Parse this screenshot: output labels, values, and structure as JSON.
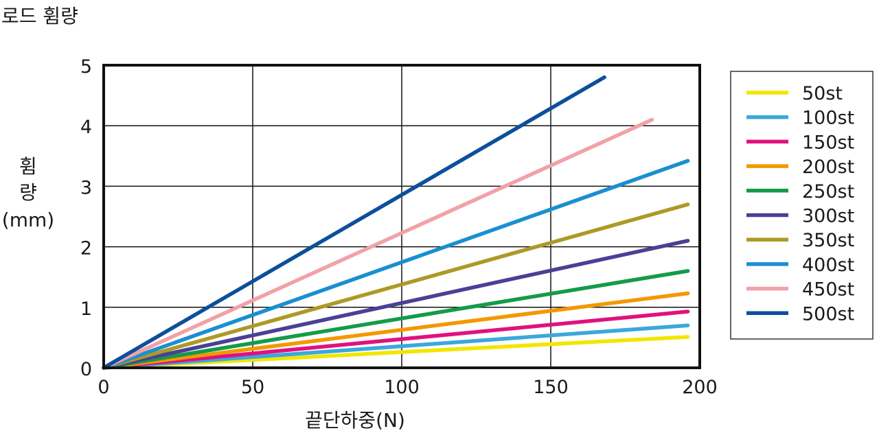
{
  "title": "로드 휨량",
  "chart_data": {
    "type": "line",
    "xlabel": "끝단하중(N)",
    "ylabel_lines": [
      "휨",
      "량",
      "(mm)"
    ],
    "xlim": [
      0,
      200
    ],
    "ylim": [
      0,
      5
    ],
    "xticks": [
      0,
      50,
      100,
      150,
      200
    ],
    "yticks": [
      0,
      1,
      2,
      3,
      4,
      5
    ],
    "grid": true,
    "legend_position": "right",
    "series": [
      {
        "name": "50st",
        "color": "#f2e600",
        "x": [
          0,
          196
        ],
        "y": [
          0,
          0.51
        ]
      },
      {
        "name": "100st",
        "color": "#3aa8dc",
        "x": [
          0,
          196
        ],
        "y": [
          0,
          0.7
        ]
      },
      {
        "name": "150st",
        "color": "#e0117f",
        "x": [
          0,
          196
        ],
        "y": [
          0,
          0.93
        ]
      },
      {
        "name": "200st",
        "color": "#f39800",
        "x": [
          0,
          196
        ],
        "y": [
          0,
          1.23
        ]
      },
      {
        "name": "250st",
        "color": "#149b4a",
        "x": [
          0,
          196
        ],
        "y": [
          0,
          1.6
        ]
      },
      {
        "name": "300st",
        "color": "#4b3f96",
        "x": [
          0,
          196
        ],
        "y": [
          0,
          2.1
        ]
      },
      {
        "name": "350st",
        "color": "#ad9a25",
        "x": [
          0,
          196
        ],
        "y": [
          0,
          2.7
        ]
      },
      {
        "name": "400st",
        "color": "#1a8fd1",
        "x": [
          0,
          196
        ],
        "y": [
          0,
          3.42
        ]
      },
      {
        "name": "450st",
        "color": "#f2a1a8",
        "x": [
          0,
          184
        ],
        "y": [
          0,
          4.1
        ]
      },
      {
        "name": "500st",
        "color": "#0c4f9c",
        "x": [
          0,
          168
        ],
        "y": [
          0,
          4.8
        ]
      }
    ]
  }
}
